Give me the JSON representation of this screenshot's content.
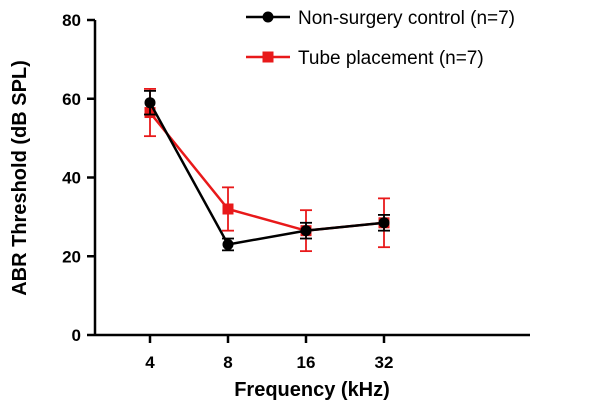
{
  "chart_data": {
    "type": "line",
    "xlabel": "Frequency (kHz)",
    "ylabel": "ABR Threshold  (dB SPL)",
    "categories": [
      "4",
      "8",
      "16",
      "32"
    ],
    "ylim": [
      0,
      80
    ],
    "yticks": [
      "0",
      "20",
      "40",
      "60",
      "80"
    ],
    "legend_position": "top-right",
    "grid": false,
    "series": [
      {
        "name": "Non-surgery control (n=7)",
        "color": "#000000",
        "marker": "circle",
        "values": [
          59,
          23,
          26.5,
          28.5
        ],
        "errors": [
          3,
          1.5,
          2,
          2
        ]
      },
      {
        "name": "Tube placement (n=7)",
        "color": "#e8191a",
        "marker": "square",
        "values": [
          56.5,
          32,
          26.5,
          28.5
        ],
        "errors": [
          6,
          5.5,
          5.2,
          6.2
        ]
      }
    ]
  }
}
